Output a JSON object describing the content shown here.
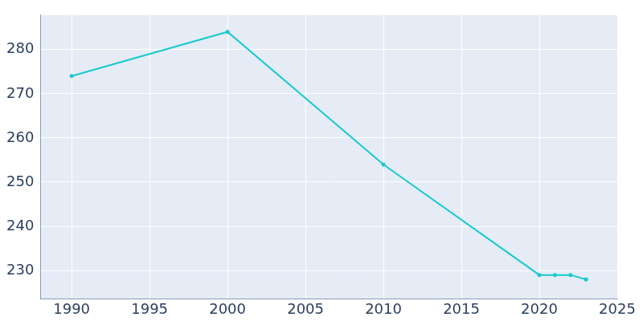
{
  "chart_data": {
    "type": "line",
    "x": [
      1990,
      2000,
      2010,
      2020,
      2021,
      2022,
      2023
    ],
    "values": [
      274,
      284,
      254,
      229,
      229,
      229,
      228
    ],
    "color": "#19c9cf",
    "marker": "circle",
    "line_style": "solid",
    "xlim": [
      1988,
      2025
    ],
    "xticks": [
      1990,
      1995,
      2000,
      2005,
      2010,
      2015,
      2020,
      2025
    ],
    "ylim": [
      223.6,
      287.8
    ],
    "yticks": [
      230,
      240,
      250,
      260,
      270,
      280
    ],
    "grid": true
  }
}
